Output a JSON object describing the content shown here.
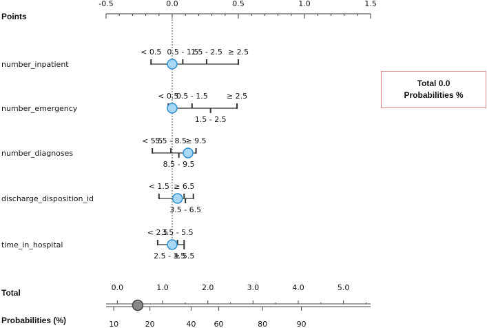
{
  "panel": {
    "total_text": "Total 0.0",
    "probabilities_text": "Probabilities %"
  },
  "chart_data": {
    "type": "nomogram",
    "points_label": "Points",
    "points_axis": {
      "min": -0.5,
      "max": 1.5,
      "ticks": [
        "-0.5",
        "0.0",
        "0.5",
        "1.0",
        "1.5"
      ],
      "tick_values": [
        -0.5,
        0,
        0.5,
        1,
        1.5
      ]
    },
    "variables": [
      {
        "name": "number_inpatient",
        "categories": [
          {
            "label": "< 0.5",
            "points": -0.16,
            "pos": "above"
          },
          {
            "label": "0.5 - 1.5",
            "points": 0.08,
            "pos": "above"
          },
          {
            "label": "1.5 - 2.5",
            "points": 0.26,
            "pos": "above"
          },
          {
            "label": "≥ 2.5",
            "points": 0.5,
            "pos": "above"
          }
        ],
        "marker": 0.0
      },
      {
        "name": "number_emergency",
        "categories": [
          {
            "label": "< 0.5",
            "points": -0.03,
            "pos": "above"
          },
          {
            "label": "0.5 - 1.5",
            "points": 0.15,
            "pos": "above"
          },
          {
            "label": "1.5 - 2.5",
            "points": 0.29,
            "pos": "below"
          },
          {
            "label": "≥ 2.5",
            "points": 0.49,
            "pos": "above"
          }
        ],
        "marker": 0.0
      },
      {
        "name": "number_diagnoses",
        "categories": [
          {
            "label": "< 5.5",
            "points": -0.15,
            "pos": "above"
          },
          {
            "label": "5.5 - 8.5",
            "points": -0.01,
            "pos": "above"
          },
          {
            "label": "8.5 - 9.5",
            "points": 0.05,
            "pos": "below"
          },
          {
            "label": "≥ 9.5",
            "points": 0.18,
            "pos": "above"
          }
        ],
        "marker": 0.12
      },
      {
        "name": "discharge_disposition_id",
        "categories": [
          {
            "label": "< 1.5",
            "points": -0.1,
            "pos": "above"
          },
          {
            "label": "≥ 6.5",
            "points": 0.09,
            "pos": "above"
          },
          {
            "label": "3.5 - 6.5",
            "points": 0.1,
            "pos": "below"
          },
          {
            "label": "",
            "points": 0.16,
            "pos": "above"
          }
        ],
        "marker": 0.04
      },
      {
        "name": "time_in_hospital",
        "categories": [
          {
            "label": "< 2.5",
            "points": -0.11,
            "pos": "above"
          },
          {
            "label": "2.5 - 3.5",
            "points": -0.02,
            "pos": "below"
          },
          {
            "label": "3.5 - 5.5",
            "points": 0.04,
            "pos": "above"
          },
          {
            "label": "≥ 5.5",
            "points": 0.09,
            "pos": "below"
          }
        ],
        "marker": 0.0
      }
    ],
    "total_label": "Total",
    "total_axis": {
      "min": -0.25,
      "max": 5.6,
      "ticks": [
        "0.0",
        "1.0",
        "2.0",
        "3.0",
        "4.0",
        "5.0"
      ],
      "tick_values": [
        0,
        1,
        2,
        3,
        4,
        5
      ]
    },
    "total_marker": 0.45,
    "probabilities_label": "Probabilities (%)",
    "probability_ticks": [
      "10",
      "20",
      "40",
      "60",
      "80",
      "90"
    ],
    "probability_tick_totals": [
      -0.08,
      0.72,
      1.63,
      2.24,
      3.21,
      4.07
    ],
    "grid": false
  }
}
